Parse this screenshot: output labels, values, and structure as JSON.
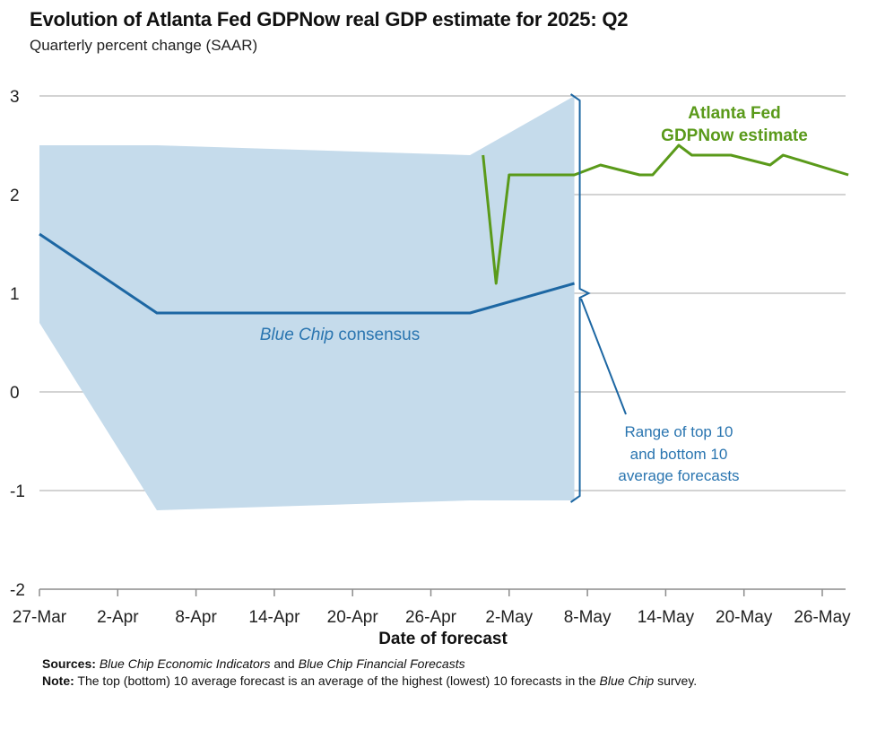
{
  "title": "Evolution of Atlanta Fed GDPNow real GDP estimate for 2025: Q2",
  "subtitle": "Quarterly percent change (SAAR)",
  "colors": {
    "band": "#c5dbeb",
    "consensus": "#1d67a3",
    "gdpnow": "#5a9a1a",
    "grid": "#b9b9b9",
    "annotation": "#2a75b0"
  },
  "annotations": {
    "gdpnow_label_1": "Atlanta Fed",
    "gdpnow_label_2": "GDPNow estimate",
    "consensus_label_italic": "Blue Chip",
    "consensus_label_rest": " consensus",
    "range_label_1": "Range of top 10",
    "range_label_2": "and bottom 10",
    "range_label_3": "average forecasts"
  },
  "footnotes": {
    "sources_label": "Sources:",
    "sources_italic_1": "Blue Chip Economic Indicators",
    "sources_mid": " and ",
    "sources_italic_2": "Blue Chip Financial Forecasts",
    "note_label": "Note:",
    "note_text_1": " The top (bottom) 10 average forecast is an average of the highest (lowest) 10 forecasts in the ",
    "note_italic": "Blue Chip",
    "note_text_2": " survey."
  },
  "chart_data": {
    "type": "line",
    "title": "Evolution of Atlanta Fed GDPNow real GDP estimate for 2025: Q2",
    "subtitle": "Quarterly percent change (SAAR)",
    "xlabel": "Date of forecast",
    "ylabel": "",
    "ylim": [
      -2,
      3
    ],
    "yticks": [
      "3",
      "2",
      "1",
      "0",
      "-1",
      "-2"
    ],
    "yticks_values": [
      3,
      2,
      1,
      0,
      -1,
      -2
    ],
    "xticks": [
      "27-Mar",
      "2-Apr",
      "8-Apr",
      "14-Apr",
      "20-Apr",
      "26-Apr",
      "2-May",
      "8-May",
      "14-May",
      "20-May",
      "26-May"
    ],
    "xticks_day_index": [
      0,
      6,
      12,
      18,
      24,
      30,
      36,
      42,
      48,
      54,
      60
    ],
    "grid": true,
    "series": [
      {
        "name": "Blue Chip consensus",
        "type": "line",
        "points": [
          {
            "date": "27-Mar",
            "day": 0,
            "value": 1.6
          },
          {
            "date": "5-Apr",
            "day": 9,
            "value": 0.8
          },
          {
            "date": "29-Apr",
            "day": 33,
            "value": 0.8
          },
          {
            "date": "7-May",
            "day": 41,
            "value": 1.1
          }
        ]
      },
      {
        "name": "Range of top 10 and bottom 10 average forecasts",
        "type": "band",
        "points": [
          {
            "date": "27-Mar",
            "day": 0,
            "low": 0.7,
            "high": 2.5
          },
          {
            "date": "5-Apr",
            "day": 9,
            "low": -1.2,
            "high": 2.5
          },
          {
            "date": "29-Apr",
            "day": 33,
            "low": -1.1,
            "high": 2.4
          },
          {
            "date": "7-May",
            "day": 41,
            "low": -1.1,
            "high": 3.0
          }
        ]
      },
      {
        "name": "Atlanta Fed GDPNow estimate",
        "type": "line",
        "points": [
          {
            "date": "30-Apr",
            "day": 34,
            "value": 2.4
          },
          {
            "date": "1-May",
            "day": 35,
            "value": 1.1
          },
          {
            "date": "2-May",
            "day": 36,
            "value": 2.2
          },
          {
            "date": "7-May",
            "day": 41,
            "value": 2.2
          },
          {
            "date": "9-May",
            "day": 43,
            "value": 2.3
          },
          {
            "date": "12-May",
            "day": 46,
            "value": 2.2
          },
          {
            "date": "13-May",
            "day": 47,
            "value": 2.2
          },
          {
            "date": "15-May",
            "day": 49,
            "value": 2.5
          },
          {
            "date": "16-May",
            "day": 50,
            "value": 2.4
          },
          {
            "date": "19-May",
            "day": 53,
            "value": 2.4
          },
          {
            "date": "22-May",
            "day": 56,
            "value": 2.3
          },
          {
            "date": "23-May",
            "day": 57,
            "value": 2.4
          },
          {
            "date": "28-May",
            "day": 62,
            "value": 2.2
          }
        ]
      }
    ]
  }
}
